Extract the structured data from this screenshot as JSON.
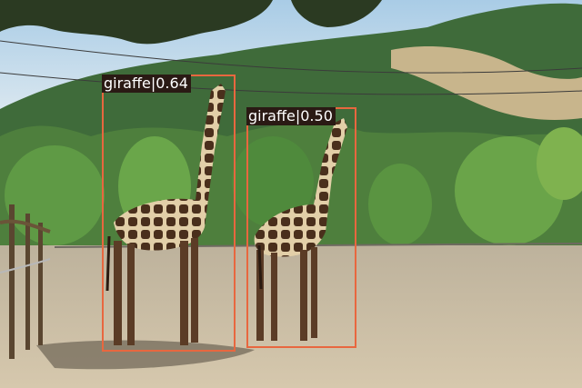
{
  "detections": [
    {
      "id": "det-1",
      "label": "giraffe|0.64",
      "class": "giraffe",
      "score": 0.64
    },
    {
      "id": "det-2",
      "label": "giraffe|0.50",
      "class": "giraffe",
      "score": 0.5
    }
  ],
  "colors": {
    "box_stroke": "#e8673f",
    "label_bg": "#2a1a14",
    "label_text": "#ffffff"
  }
}
